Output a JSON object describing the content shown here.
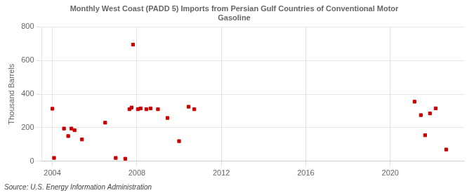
{
  "chart_data": {
    "type": "scatter",
    "title": "Monthly West Coast (PADD 5) Imports from Persian Gulf Countries of Conventional Motor\nGasoline",
    "ylabel": "Thousand Barrels",
    "annotations": [
      "Source: U.S. Energy Information Administration"
    ],
    "x": [
      2004.0,
      2004.08,
      2004.55,
      2004.75,
      2004.9,
      2005.05,
      2005.4,
      2006.5,
      2007.0,
      2007.45,
      2007.65,
      2007.75,
      2007.82,
      2008.05,
      2008.18,
      2008.45,
      2008.65,
      2009.0,
      2009.45,
      2010.0,
      2010.45,
      2010.72,
      2021.15,
      2021.45,
      2021.65,
      2021.88,
      2022.15,
      2022.65
    ],
    "values": [
      313,
      20,
      195,
      150,
      195,
      185,
      130,
      230,
      20,
      15,
      310,
      320,
      695,
      310,
      315,
      310,
      315,
      310,
      258,
      120,
      325,
      310,
      355,
      275,
      155,
      285,
      315,
      70
    ],
    "color": "#cc0000",
    "marker": "square",
    "xlim": [
      2003.5,
      2023.5
    ],
    "xticks": [
      2004,
      2008,
      2012,
      2016,
      2020
    ],
    "ylim": [
      0,
      800
    ],
    "yticks": [
      0,
      200,
      400,
      600,
      800
    ],
    "grid": true
  }
}
